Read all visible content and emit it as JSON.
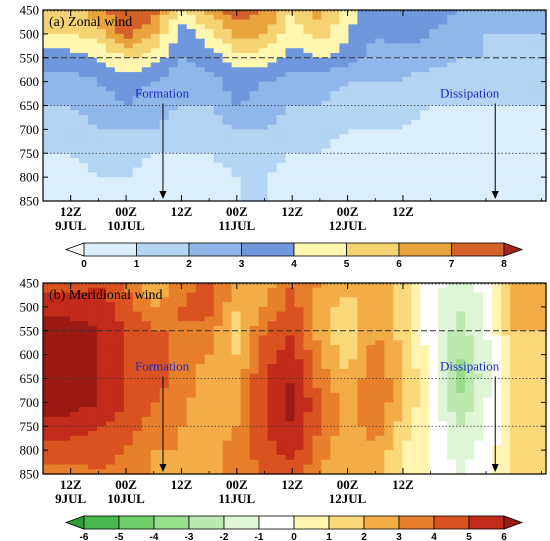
{
  "chart_data": [
    {
      "type": "heatmap",
      "title": "(a) Zonal wind",
      "yticks": [
        450,
        500,
        550,
        600,
        650,
        700,
        750,
        800,
        850
      ],
      "ylim": [
        450,
        850
      ],
      "y_reversed": true,
      "xticks": [
        {
          "time": "12Z",
          "date": "9JUL"
        },
        {
          "time": "00Z",
          "date": "10JUL"
        },
        {
          "time": "12Z",
          "date": ""
        },
        {
          "time": "00Z",
          "date": "11JUL"
        },
        {
          "time": "12Z",
          "date": ""
        },
        {
          "time": "00Z",
          "date": "12JUL"
        },
        {
          "time": "12Z",
          "date": ""
        }
      ],
      "reference_lines": [
        {
          "level": 550,
          "style": "dashed"
        },
        {
          "level": 650,
          "style": "dotted"
        },
        {
          "level": 750,
          "style": "dotted"
        }
      ],
      "annotations": [
        {
          "text": "Formation",
          "x_hours": 20,
          "arrow_from": 650,
          "arrow_to": 850
        },
        {
          "text": "Dissipation",
          "x_hours": 92,
          "arrow_from": 650,
          "arrow_to": 850
        }
      ],
      "colorbar": {
        "labels": [
          "0",
          "1",
          "2",
          "3",
          "4",
          "5",
          "6",
          "7",
          "8"
        ],
        "colors": [
          "#ffffff",
          "#dbeefb",
          "#b3d4f3",
          "#8fb7ea",
          "#6e97dc",
          "#fff6b0",
          "#f6d372",
          "#e9a43d",
          "#d2612a",
          "#a2241c"
        ]
      },
      "field": {
        "levels": [
          450,
          500,
          550,
          600,
          650,
          700,
          750,
          800,
          850
        ],
        "hours": [
          0,
          6,
          12,
          18,
          24,
          30,
          36,
          42,
          48,
          54,
          60,
          66,
          72,
          78,
          84,
          90,
          96
        ],
        "values": [
          [
            5.5,
            6.5,
            8.0,
            7.5,
            4.5,
            6.5,
            7.5,
            7.0,
            5.0,
            6.5,
            4.5,
            3.5,
            4.0,
            3.5,
            3.0,
            2.5,
            2.0
          ],
          [
            5.0,
            5.5,
            7.5,
            6.0,
            3.5,
            4.5,
            6.5,
            6.0,
            4.5,
            5.5,
            4.0,
            3.0,
            3.5,
            3.0,
            2.5,
            2.0,
            2.0
          ],
          [
            3.5,
            4.0,
            5.0,
            4.5,
            3.0,
            3.5,
            4.5,
            4.5,
            3.5,
            4.0,
            3.5,
            2.5,
            2.5,
            2.5,
            2.0,
            2.0,
            1.5
          ],
          [
            2.5,
            3.0,
            3.5,
            3.0,
            2.0,
            2.5,
            3.5,
            3.0,
            2.5,
            2.5,
            2.0,
            2.0,
            2.0,
            1.5,
            1.5,
            1.5,
            1.0
          ],
          [
            2.0,
            2.5,
            3.0,
            2.5,
            2.0,
            2.0,
            3.0,
            2.5,
            2.0,
            2.0,
            1.5,
            1.5,
            1.5,
            1.0,
            1.0,
            1.0,
            1.0
          ],
          [
            1.5,
            2.0,
            2.0,
            2.0,
            1.5,
            1.5,
            2.0,
            2.0,
            1.5,
            1.5,
            1.0,
            1.0,
            1.0,
            0.5,
            0.5,
            0.5,
            0.5
          ],
          [
            1.0,
            1.5,
            1.5,
            1.0,
            1.0,
            1.0,
            1.5,
            1.5,
            1.0,
            1.0,
            0.5,
            0.5,
            0.5,
            0.5,
            0.5,
            0.5,
            0.5
          ],
          [
            0.5,
            1.0,
            1.0,
            0.5,
            0.5,
            0.5,
            1.0,
            1.0,
            0.5,
            0.5,
            0.5,
            0.5,
            0.5,
            0.5,
            0.5,
            0.5,
            0.5
          ],
          [
            0.5,
            0.5,
            1.0,
            0.5,
            0.5,
            0.5,
            1.0,
            1.0,
            0.5,
            0.5,
            0.5,
            0.5,
            0.5,
            0.5,
            0.5,
            0.5,
            0.5
          ]
        ]
      }
    },
    {
      "type": "heatmap",
      "title": "(b) Meridional wind",
      "yticks": [
        450,
        500,
        550,
        600,
        650,
        700,
        750,
        800,
        850
      ],
      "ylim": [
        450,
        850
      ],
      "y_reversed": true,
      "xticks": [
        {
          "time": "12Z",
          "date": "9JUL"
        },
        {
          "time": "00Z",
          "date": "10JUL"
        },
        {
          "time": "12Z",
          "date": ""
        },
        {
          "time": "00Z",
          "date": "11JUL"
        },
        {
          "time": "12Z",
          "date": ""
        },
        {
          "time": "00Z",
          "date": "12JUL"
        },
        {
          "time": "12Z",
          "date": ""
        }
      ],
      "reference_lines": [
        {
          "level": 550,
          "style": "dashed"
        },
        {
          "level": 650,
          "style": "dotted"
        },
        {
          "level": 750,
          "style": "dotted"
        }
      ],
      "annotations": [
        {
          "text": "Formation",
          "x_hours": 20,
          "arrow_from": 650,
          "arrow_to": 850
        },
        {
          "text": "Dissipation",
          "x_hours": 92,
          "arrow_from": 650,
          "arrow_to": 850
        }
      ],
      "colorbar": {
        "labels": [
          "-6",
          "-5",
          "-4",
          "-3",
          "-2",
          "-1",
          "0",
          "1",
          "2",
          "3",
          "4",
          "5",
          "6"
        ],
        "colors": [
          "#2e9e3a",
          "#49b84e",
          "#6fcf6a",
          "#97de8c",
          "#bde9b0",
          "#def5d6",
          "#ffffff",
          "#fff5b0",
          "#fbd97a",
          "#f2ad47",
          "#e77f2b",
          "#da521f",
          "#c22a19",
          "#9c1a14"
        ]
      },
      "field": {
        "levels": [
          450,
          500,
          550,
          600,
          650,
          700,
          750,
          800,
          850
        ],
        "hours": [
          0,
          6,
          12,
          18,
          24,
          30,
          36,
          42,
          48,
          54,
          60,
          66,
          72,
          78,
          84,
          90,
          96
        ],
        "values": [
          [
            4.5,
            5.0,
            4.0,
            2.0,
            3.5,
            4.5,
            3.0,
            2.5,
            4.0,
            3.0,
            2.5,
            2.5,
            1.5,
            -0.5,
            -1.5,
            -0.5,
            2.0
          ],
          [
            5.5,
            5.5,
            4.5,
            3.0,
            4.0,
            4.5,
            2.0,
            3.0,
            4.5,
            2.5,
            1.5,
            2.5,
            1.5,
            -0.5,
            -2.0,
            -1.0,
            2.5
          ],
          [
            6.5,
            6.0,
            5.0,
            4.0,
            4.0,
            3.5,
            1.5,
            4.0,
            5.0,
            2.5,
            1.0,
            3.0,
            1.5,
            -0.5,
            -2.5,
            -1.0,
            2.0
          ],
          [
            6.5,
            6.0,
            5.0,
            4.5,
            3.5,
            3.0,
            2.0,
            4.5,
            5.5,
            3.0,
            1.5,
            3.5,
            2.0,
            -0.5,
            -3.0,
            -1.5,
            1.5
          ],
          [
            6.0,
            6.0,
            5.0,
            4.5,
            3.5,
            2.5,
            2.5,
            5.0,
            6.0,
            3.5,
            2.0,
            4.0,
            2.0,
            0.0,
            -3.5,
            -1.5,
            1.5
          ],
          [
            6.5,
            6.0,
            5.0,
            4.0,
            3.5,
            2.0,
            3.0,
            5.0,
            6.5,
            4.0,
            2.5,
            4.0,
            2.0,
            0.0,
            -3.0,
            -1.0,
            1.0
          ],
          [
            5.5,
            5.0,
            4.5,
            3.5,
            3.0,
            2.0,
            3.0,
            5.0,
            6.0,
            4.0,
            2.5,
            3.5,
            1.5,
            0.0,
            -2.0,
            -1.0,
            1.0
          ],
          [
            4.5,
            4.5,
            4.0,
            3.0,
            3.0,
            2.5,
            3.5,
            4.5,
            5.5,
            3.5,
            2.0,
            3.0,
            1.0,
            0.0,
            -1.5,
            -0.5,
            1.0
          ],
          [
            3.5,
            4.0,
            3.5,
            3.0,
            2.5,
            2.5,
            3.5,
            4.0,
            4.5,
            3.0,
            2.0,
            2.5,
            1.0,
            0.0,
            -1.0,
            -0.5,
            1.0
          ]
        ]
      }
    }
  ]
}
